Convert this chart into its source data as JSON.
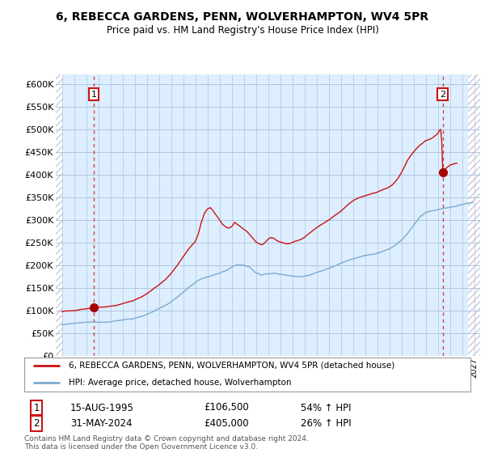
{
  "title": "6, REBECCA GARDENS, PENN, WOLVERHAMPTON, WV4 5PR",
  "subtitle": "Price paid vs. HM Land Registry's House Price Index (HPI)",
  "background_color": "#ffffff",
  "plot_bg_color": "#ddeeff",
  "hatch_bg_color": "#ffffff",
  "hatch_edge_color": "#c8c8d8",
  "grid_color": "#b0c4de",
  "ylim": [
    0,
    620000
  ],
  "yticks": [
    0,
    50000,
    100000,
    150000,
    200000,
    250000,
    300000,
    350000,
    400000,
    450000,
    500000,
    550000,
    600000
  ],
  "xlim_left": 1992.5,
  "xlim_right": 2027.5,
  "hpi_line_color": "#7aaad0",
  "price_line_color": "#cc1111",
  "marker_color": "#aa0000",
  "annotation_box_color": "#cc1111",
  "dashed_line_color": "#cc4444",
  "sale1_x": 1995.625,
  "sale1_y": 106500,
  "sale1_label": "1",
  "sale2_x": 2024.42,
  "sale2_y": 405000,
  "sale2_label": "2",
  "legend_entry1": "6, REBECCA GARDENS, PENN, WOLVERHAMPTON, WV4 5PR (detached house)",
  "legend_entry2": "HPI: Average price, detached house, Wolverhampton",
  "table_row1": [
    "1",
    "15-AUG-1995",
    "£106,500",
    "54% ↑ HPI"
  ],
  "table_row2": [
    "2",
    "31-MAY-2024",
    "£405,000",
    "26% ↑ HPI"
  ],
  "footer": "Contains HM Land Registry data © Crown copyright and database right 2024.\nThis data is licensed under the Open Government Licence v3.0."
}
